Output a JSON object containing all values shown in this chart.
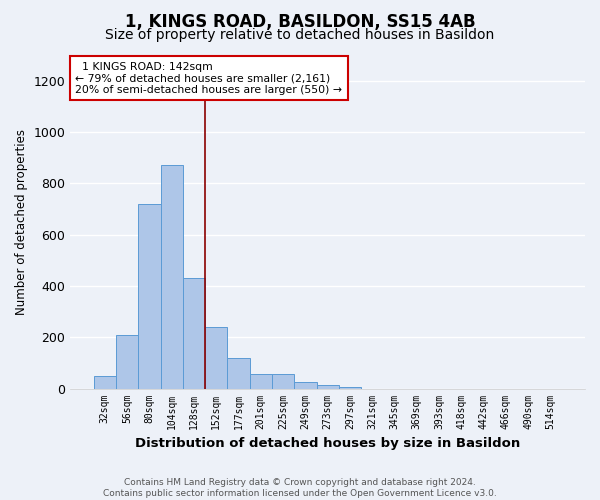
{
  "title": "1, KINGS ROAD, BASILDON, SS15 4AB",
  "subtitle": "Size of property relative to detached houses in Basildon",
  "xlabel": "Distribution of detached houses by size in Basildon",
  "ylabel": "Number of detached properties",
  "footnote": "Contains HM Land Registry data © Crown copyright and database right 2024.\nContains public sector information licensed under the Open Government Licence v3.0.",
  "bins": [
    "32sqm",
    "56sqm",
    "80sqm",
    "104sqm",
    "128sqm",
    "152sqm",
    "177sqm",
    "201sqm",
    "225sqm",
    "249sqm",
    "273sqm",
    "297sqm",
    "321sqm",
    "345sqm",
    "369sqm",
    "393sqm",
    "418sqm",
    "442sqm",
    "466sqm",
    "490sqm",
    "514sqm"
  ],
  "bar_heights": [
    50,
    210,
    720,
    870,
    430,
    240,
    120,
    55,
    55,
    25,
    15,
    5,
    0,
    0,
    0,
    0,
    0,
    0,
    0,
    0,
    0
  ],
  "bar_color": "#aec6e8",
  "bar_edge_color": "#5b9bd5",
  "vline_x": 4.5,
  "vline_color": "#8b0000",
  "annotation_text": "  1 KINGS ROAD: 142sqm\n← 79% of detached houses are smaller (2,161)\n20% of semi-detached houses are larger (550) →",
  "annotation_box_color": "#ffffff",
  "annotation_box_edge": "#cc0000",
  "ylim": [
    0,
    1300
  ],
  "yticks": [
    0,
    200,
    400,
    600,
    800,
    1000,
    1200
  ],
  "background_color": "#edf1f8",
  "title_fontsize": 12,
  "subtitle_fontsize": 10,
  "footnote_fontsize": 6.5
}
